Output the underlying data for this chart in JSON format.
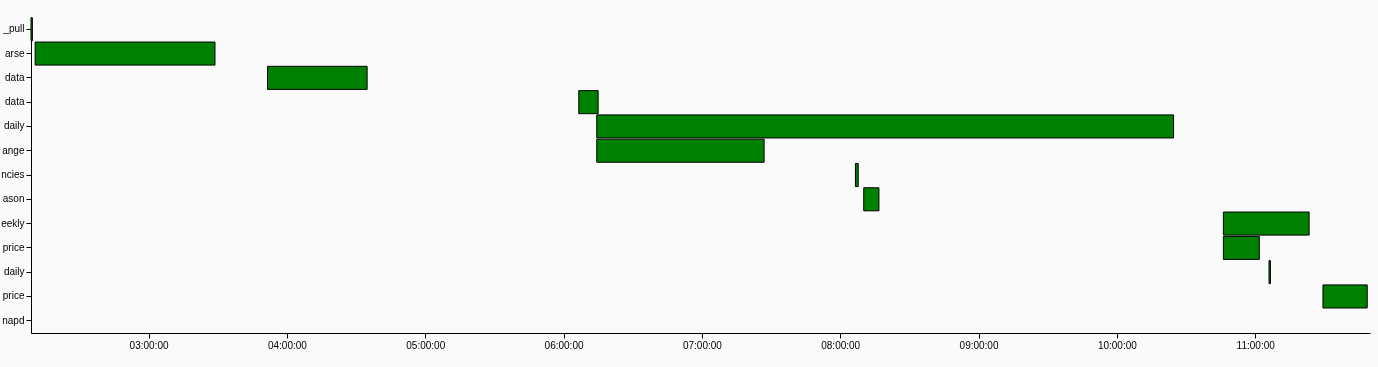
{
  "chart_data": {
    "type": "bar",
    "orientation": "horizontal",
    "categories": [
      "_pull",
      "arse",
      "data",
      "data",
      "daily",
      "ange",
      "ncies",
      "ason",
      "eekly",
      "price",
      "daily",
      "price",
      "napd"
    ],
    "base": [
      2.15,
      2.18,
      3.86,
      6.11,
      6.24,
      6.24,
      8.11,
      8.17,
      10.77,
      10.77,
      11.1,
      11.49,
      null
    ],
    "values": [
      0.01,
      1.3,
      0.72,
      0.14,
      4.17,
      1.21,
      0.02,
      0.11,
      0.62,
      0.26,
      0.01,
      0.32,
      null
    ],
    "color": "#008000",
    "xlim": [
      2.15,
      11.83
    ],
    "xticks": [
      {
        "value": 3,
        "label": "03:00:00"
      },
      {
        "value": 4,
        "label": "04:00:00"
      },
      {
        "value": 5,
        "label": "05:00:00"
      },
      {
        "value": 6,
        "label": "06:00:00"
      },
      {
        "value": 7,
        "label": "07:00:00"
      },
      {
        "value": 8,
        "label": "08:00:00"
      },
      {
        "value": 9,
        "label": "09:00:00"
      },
      {
        "value": 10,
        "label": "10:00:00"
      },
      {
        "value": 11,
        "label": "11:00:00"
      }
    ],
    "grid": false
  }
}
